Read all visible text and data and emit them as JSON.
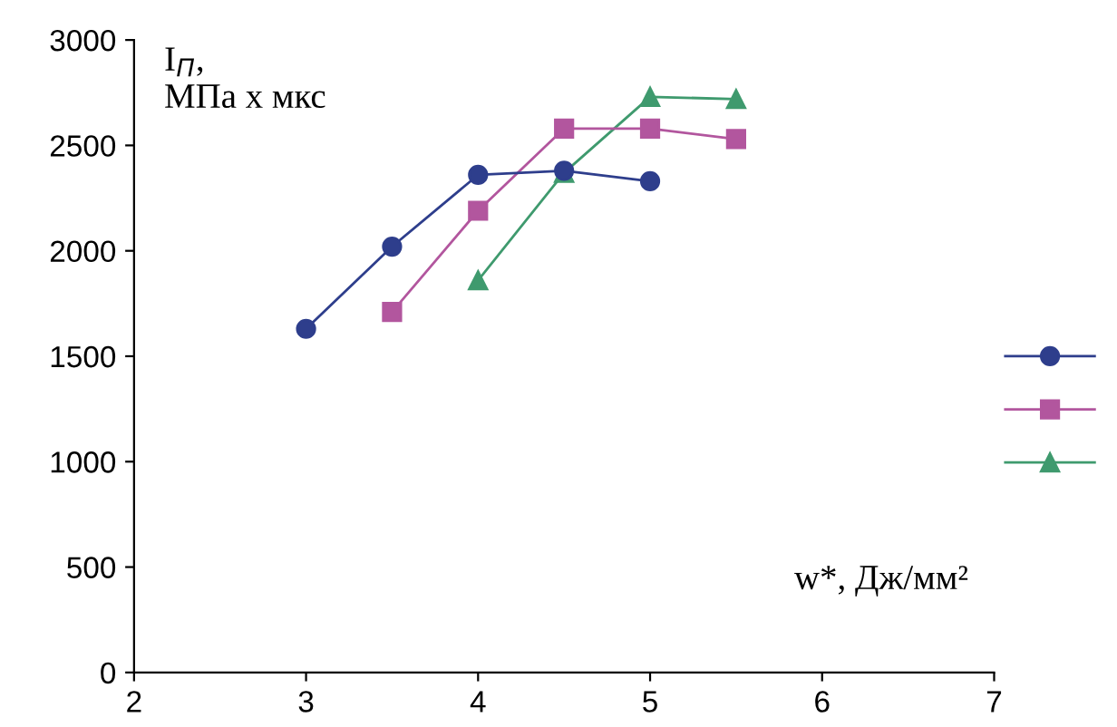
{
  "chart_data": {
    "type": "line",
    "xlabel": "w*, Дж/мм²",
    "ylabel": "I$_{П}$,\nМПа x мкс",
    "xlim": [
      2,
      7
    ],
    "xticks": [
      2,
      3,
      4,
      5,
      6,
      7
    ],
    "ylim": [
      0,
      3000
    ],
    "yticks": [
      0,
      500,
      1000,
      1500,
      2000,
      2500,
      3000
    ],
    "grid": false,
    "series": [
      {
        "color": "#2e3e8c",
        "marker": "circle",
        "x": [
          3,
          3.5,
          4,
          4.5,
          5
        ],
        "values": [
          1630,
          2020,
          2360,
          2380,
          2330
        ]
      },
      {
        "color": "#b2569e",
        "marker": "square",
        "x": [
          3.5,
          4,
          4.5,
          5,
          5.5
        ],
        "values": [
          1710,
          2190,
          2580,
          2580,
          2530
        ]
      },
      {
        "color": "#3f9a6e",
        "marker": "triangle",
        "x": [
          4,
          4.5,
          5,
          5.5
        ],
        "values": [
          1860,
          2370,
          2730,
          2720
        ]
      }
    ]
  }
}
